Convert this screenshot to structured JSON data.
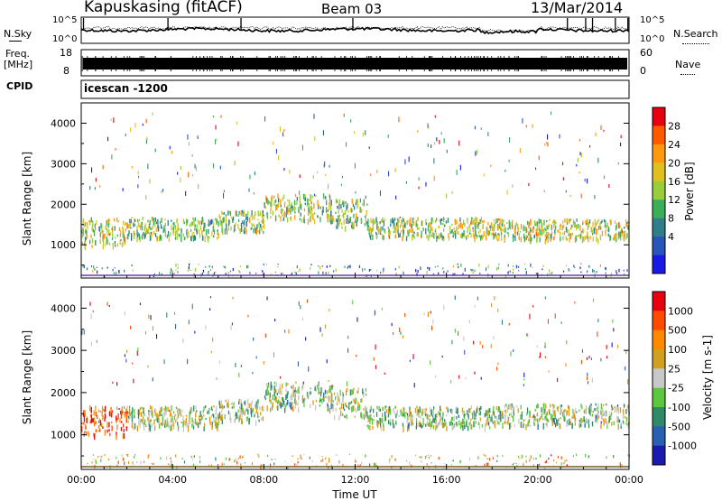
{
  "header": {
    "station": "Kapuskasing (fitACF)",
    "beam": "Beam 03",
    "date": "13/Mar/2014"
  },
  "panels": {
    "nsky_label": "N.Sky",
    "nsearch_label": "N.Search",
    "nsky_ticks": [
      "10^5",
      "10^0"
    ],
    "nsearch_ticks": [
      "10^5",
      "10^0"
    ],
    "freq_label": "Freq.",
    "freq_unit": "[MHz]",
    "freq_ticks": [
      "18",
      "8"
    ],
    "nave_label": "Nave",
    "nave_ticks": [
      "60",
      "0"
    ],
    "cpid_label": "CPID",
    "cpid_value": "icescan -1200"
  },
  "chart_data": [
    {
      "type": "heatmap",
      "name": "power",
      "ylabel": "Slant Range [km]",
      "xlabel": "",
      "x_ticks": [
        "00:00",
        "04:00",
        "08:00",
        "12:00",
        "16:00",
        "20:00",
        "00:00"
      ],
      "x_range_hours": [
        0,
        24
      ],
      "y_ticks": [
        1000,
        2000,
        3000,
        4000
      ],
      "ylim": [
        180,
        4500
      ],
      "colorbar": {
        "label": "Power [dB]",
        "ticks": [
          "28",
          "24",
          "20",
          "16",
          "12",
          "8",
          "4"
        ],
        "colors": [
          "#1a1ae6",
          "#2a55b8",
          "#2f7f8a",
          "#3cae5a",
          "#9acc3c",
          "#e0c020",
          "#ff9a10",
          "#ff5a00",
          "#e60010"
        ]
      },
      "scatter_bands": [
        {
          "from_h": 0.0,
          "to_h": 2.0,
          "center_km": 1350,
          "width_km": 350,
          "level": 0.55
        },
        {
          "from_h": 2.0,
          "to_h": 6.0,
          "center_km": 1450,
          "width_km": 250,
          "level": 0.45
        },
        {
          "from_h": 6.0,
          "to_h": 8.0,
          "center_km": 1600,
          "width_km": 260,
          "level": 0.45
        },
        {
          "from_h": 8.0,
          "to_h": 11.0,
          "center_km": 1950,
          "width_km": 320,
          "level": 0.5
        },
        {
          "from_h": 11.0,
          "to_h": 12.5,
          "center_km": 1800,
          "width_km": 350,
          "level": 0.45
        },
        {
          "from_h": 12.5,
          "to_h": 18.0,
          "center_km": 1450,
          "width_km": 250,
          "level": 0.5
        },
        {
          "from_h": 18.0,
          "to_h": 24.0,
          "center_km": 1400,
          "width_km": 250,
          "level": 0.55
        }
      ]
    },
    {
      "type": "heatmap",
      "name": "velocity",
      "ylabel": "Slant Range [km]",
      "xlabel": "Time UT",
      "x_ticks": [
        "00:00",
        "04:00",
        "08:00",
        "12:00",
        "16:00",
        "20:00",
        "00:00"
      ],
      "x_range_hours": [
        0,
        24
      ],
      "y_ticks": [
        1000,
        2000,
        3000,
        4000
      ],
      "ylim": [
        180,
        4500
      ],
      "colorbar": {
        "label": "Velocity [m s-1]",
        "ticks": [
          "1000",
          "500",
          "100",
          "25",
          "-25",
          "-100",
          "-500",
          "-1000"
        ],
        "colors": [
          "#1a1ab0",
          "#2a60b0",
          "#2f8a6a",
          "#5cc840",
          "#c8c8c8",
          "#d0a020",
          "#ff8a00",
          "#ff4a00",
          "#e60010"
        ]
      },
      "scatter_bands": [
        {
          "from_h": 0.0,
          "to_h": 2.0,
          "center_km": 1350,
          "width_km": 350,
          "level": 0.8
        },
        {
          "from_h": 2.0,
          "to_h": 6.0,
          "center_km": 1450,
          "width_km": 250,
          "level": 0.5
        },
        {
          "from_h": 6.0,
          "to_h": 8.0,
          "center_km": 1600,
          "width_km": 260,
          "level": 0.45
        },
        {
          "from_h": 8.0,
          "to_h": 11.0,
          "center_km": 1950,
          "width_km": 320,
          "level": 0.45
        },
        {
          "from_h": 11.0,
          "to_h": 12.5,
          "center_km": 1800,
          "width_km": 350,
          "level": 0.5
        },
        {
          "from_h": 12.5,
          "to_h": 18.0,
          "center_km": 1450,
          "width_km": 250,
          "level": 0.45
        },
        {
          "from_h": 18.0,
          "to_h": 24.0,
          "center_km": 1500,
          "width_km": 250,
          "level": 0.45
        }
      ]
    }
  ]
}
